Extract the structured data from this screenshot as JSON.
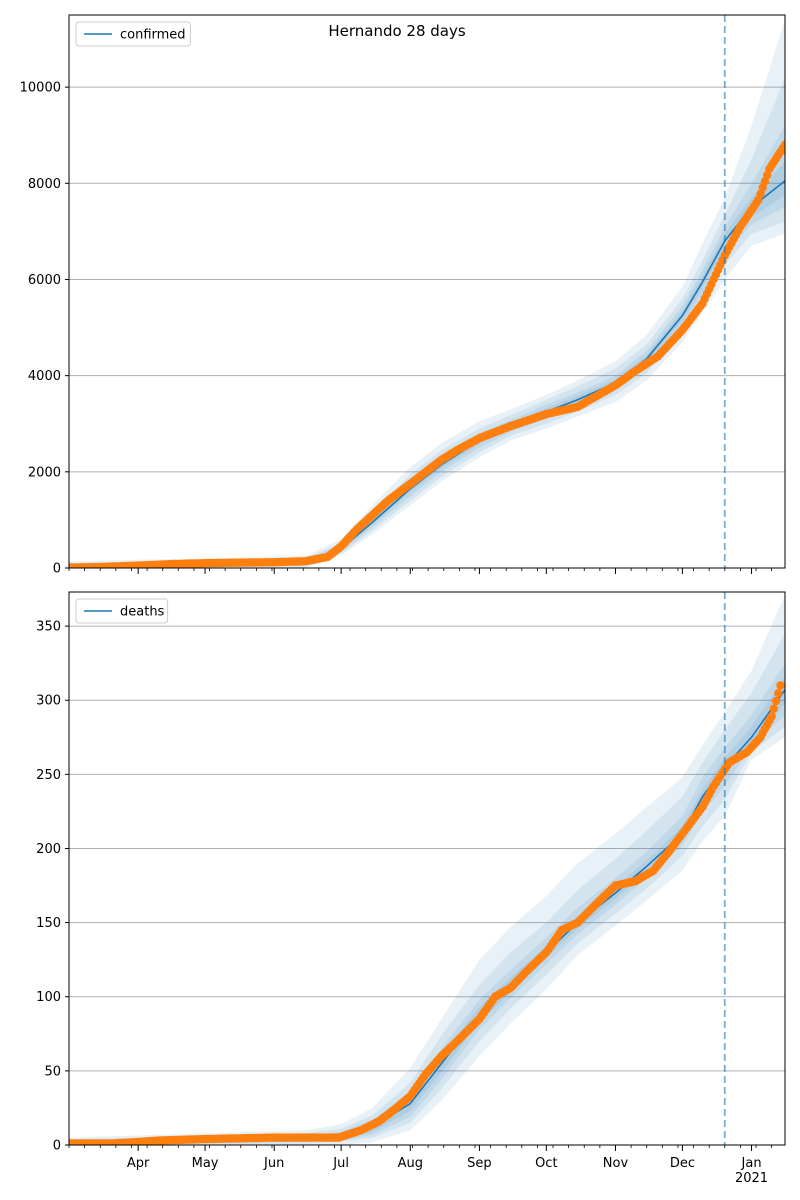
{
  "suptitle": "Hernando 28 days",
  "colors": {
    "model": "#1f77b4",
    "observed": "#ff7f0e",
    "grid": "#b0b0b0",
    "forecast_line": "#1f77b4"
  },
  "x_axis": {
    "start": "2020-03-01",
    "end": "2021-01-16",
    "forecast_start": "2020-12-20",
    "major_ticks": [
      {
        "date": "2020-04-01",
        "label": "Apr"
      },
      {
        "date": "2020-05-01",
        "label": "May"
      },
      {
        "date": "2020-06-01",
        "label": "Jun"
      },
      {
        "date": "2020-07-01",
        "label": "Jul"
      },
      {
        "date": "2020-08-01",
        "label": "Aug"
      },
      {
        "date": "2020-09-01",
        "label": "Sep"
      },
      {
        "date": "2020-10-01",
        "label": "Oct"
      },
      {
        "date": "2020-11-01",
        "label": "Nov"
      },
      {
        "date": "2020-12-01",
        "label": "Dec"
      },
      {
        "date": "2021-01-01",
        "label": "Jan"
      }
    ],
    "year_label": "2021"
  },
  "chart_data": [
    {
      "type": "line",
      "legend": [
        "confirmed"
      ],
      "legend_position": "top-left",
      "ylim": [
        0,
        11500
      ],
      "yticks": [
        0,
        2000,
        4000,
        6000,
        8000,
        10000
      ],
      "grid": "horizontal",
      "fit_x": [
        "2020-03-01",
        "2020-06-15",
        "2020-07-01",
        "2020-07-15",
        "2020-08-01",
        "2020-08-15",
        "2020-09-01",
        "2020-09-15",
        "2020-10-01",
        "2020-10-15",
        "2020-11-01",
        "2020-11-15",
        "2020-12-01",
        "2020-12-10",
        "2020-12-20",
        "2021-01-01",
        "2021-01-16"
      ],
      "fit_y": [
        30,
        140,
        400,
        950,
        1650,
        2150,
        2650,
        2950,
        3250,
        3500,
        3850,
        4350,
        5250,
        5950,
        6800,
        7500,
        8050
      ],
      "bands": [
        {
          "lower": [
            0,
            0,
            260,
            700,
            1300,
            1800,
            2300,
            2650,
            2900,
            3150,
            3450,
            3900,
            4700,
            5300,
            6000,
            6700,
            6950
          ],
          "upper": [
            140,
            250,
            600,
            1300,
            2100,
            2600,
            3050,
            3300,
            3600,
            3900,
            4300,
            4850,
            5850,
            6750,
            7700,
            9200,
            11400
          ]
        },
        {
          "lower": [
            0,
            30,
            300,
            780,
            1400,
            1900,
            2400,
            2750,
            3000,
            3250,
            3600,
            4050,
            4900,
            5550,
            6300,
            6950,
            7200
          ],
          "upper": [
            100,
            210,
            520,
            1150,
            1950,
            2450,
            2900,
            3180,
            3500,
            3780,
            4150,
            4650,
            5600,
            6400,
            7350,
            8500,
            10200
          ]
        },
        {
          "lower": [
            0,
            70,
            340,
            850,
            1500,
            2000,
            2500,
            2830,
            3100,
            3350,
            3700,
            4180,
            5050,
            5700,
            6500,
            7150,
            7500
          ],
          "upper": [
            70,
            180,
            470,
            1050,
            1800,
            2300,
            2800,
            3080,
            3400,
            3650,
            4000,
            4520,
            5450,
            6200,
            7100,
            8000,
            9200
          ]
        },
        {
          "lower": [
            10,
            110,
            370,
            900,
            1580,
            2080,
            2580,
            2890,
            3180,
            3420,
            3780,
            4270,
            5150,
            5830,
            6650,
            7300,
            7750
          ],
          "upper": [
            50,
            165,
            430,
            1000,
            1720,
            2220,
            2720,
            3010,
            3320,
            3580,
            3920,
            4430,
            5350,
            6070,
            6950,
            7700,
            8450
          ]
        }
      ],
      "observed_x": [
        "2020-03-01",
        "2020-03-15",
        "2020-04-01",
        "2020-04-15",
        "2020-05-01",
        "2020-05-15",
        "2020-06-01",
        "2020-06-15",
        "2020-06-25",
        "2020-07-01",
        "2020-07-08",
        "2020-07-15",
        "2020-07-22",
        "2020-08-01",
        "2020-08-08",
        "2020-08-15",
        "2020-08-22",
        "2020-09-01",
        "2020-09-15",
        "2020-10-01",
        "2020-10-15",
        "2020-11-01",
        "2020-11-10",
        "2020-11-20",
        "2020-12-01",
        "2020-12-10",
        "2020-12-20",
        "2020-12-27",
        "2021-01-04",
        "2021-01-09",
        "2021-01-16"
      ],
      "observed_y": [
        10,
        20,
        50,
        80,
        100,
        110,
        120,
        140,
        230,
        450,
        800,
        1100,
        1400,
        1750,
        2000,
        2250,
        2450,
        2700,
        2950,
        3200,
        3350,
        3800,
        4100,
        4400,
        4950,
        5500,
        6500,
        7100,
        7650,
        8300,
        8800
      ]
    },
    {
      "type": "line",
      "legend": [
        "deaths"
      ],
      "legend_position": "top-left",
      "ylim": [
        0,
        373
      ],
      "yticks": [
        0,
        50,
        100,
        150,
        200,
        250,
        300,
        350
      ],
      "grid": "horizontal",
      "fit_x": [
        "2020-03-01",
        "2020-06-15",
        "2020-07-01",
        "2020-07-15",
        "2020-08-01",
        "2020-08-15",
        "2020-09-01",
        "2020-09-15",
        "2020-10-01",
        "2020-10-15",
        "2020-11-01",
        "2020-11-15",
        "2020-12-01",
        "2020-12-10",
        "2020-12-20",
        "2021-01-01",
        "2021-01-16"
      ],
      "fit_y": [
        1,
        4,
        6,
        12,
        28,
        55,
        88,
        108,
        130,
        150,
        170,
        188,
        210,
        235,
        255,
        275,
        307
      ],
      "bands": [
        {
          "lower": [
            0,
            0,
            0,
            2,
            10,
            30,
            60,
            82,
            105,
            128,
            148,
            165,
            185,
            205,
            222,
            260,
            275
          ],
          "upper": [
            5,
            10,
            14,
            25,
            52,
            85,
            125,
            147,
            168,
            190,
            210,
            228,
            248,
            270,
            292,
            320,
            371
          ]
        },
        {
          "lower": [
            0,
            1,
            2,
            5,
            15,
            38,
            70,
            92,
            115,
            136,
            156,
            173,
            195,
            215,
            233,
            265,
            282
          ],
          "upper": [
            4,
            8,
            11,
            20,
            42,
            74,
            108,
            130,
            150,
            172,
            193,
            212,
            235,
            258,
            280,
            305,
            345
          ]
        },
        {
          "lower": [
            0,
            2,
            3,
            7,
            19,
            44,
            78,
            99,
            122,
            142,
            162,
            180,
            202,
            224,
            242,
            269,
            290
          ],
          "upper": [
            3,
            6,
            9,
            17,
            36,
            65,
            98,
            118,
            140,
            160,
            180,
            198,
            222,
            248,
            268,
            290,
            325
          ]
        },
        {
          "lower": [
            0,
            3,
            4,
            9,
            23,
            49,
            83,
            103,
            126,
            146,
            166,
            184,
            206,
            230,
            249,
            272,
            298
          ],
          "upper": [
            2,
            5,
            8,
            15,
            32,
            60,
            93,
            113,
            134,
            154,
            174,
            192,
            215,
            240,
            261,
            282,
            316
          ]
        }
      ],
      "observed_x": [
        "2020-03-01",
        "2020-03-20",
        "2020-04-01",
        "2020-04-10",
        "2020-05-01",
        "2020-06-01",
        "2020-06-30",
        "2020-07-10",
        "2020-07-18",
        "2020-07-25",
        "2020-08-01",
        "2020-08-08",
        "2020-08-15",
        "2020-08-22",
        "2020-09-01",
        "2020-09-08",
        "2020-09-15",
        "2020-09-22",
        "2020-10-01",
        "2020-10-08",
        "2020-10-15",
        "2020-10-25",
        "2020-11-01",
        "2020-11-10",
        "2020-11-18",
        "2020-11-25",
        "2020-12-01",
        "2020-12-10",
        "2020-12-15",
        "2020-12-22",
        "2020-12-30",
        "2021-01-05",
        "2021-01-10",
        "2021-01-14"
      ],
      "observed_y": [
        1,
        1,
        2,
        3,
        4,
        5,
        5,
        10,
        16,
        24,
        33,
        48,
        60,
        70,
        85,
        100,
        106,
        117,
        130,
        145,
        150,
        165,
        175,
        178,
        185,
        198,
        210,
        228,
        242,
        258,
        265,
        275,
        289,
        310
      ]
    }
  ]
}
